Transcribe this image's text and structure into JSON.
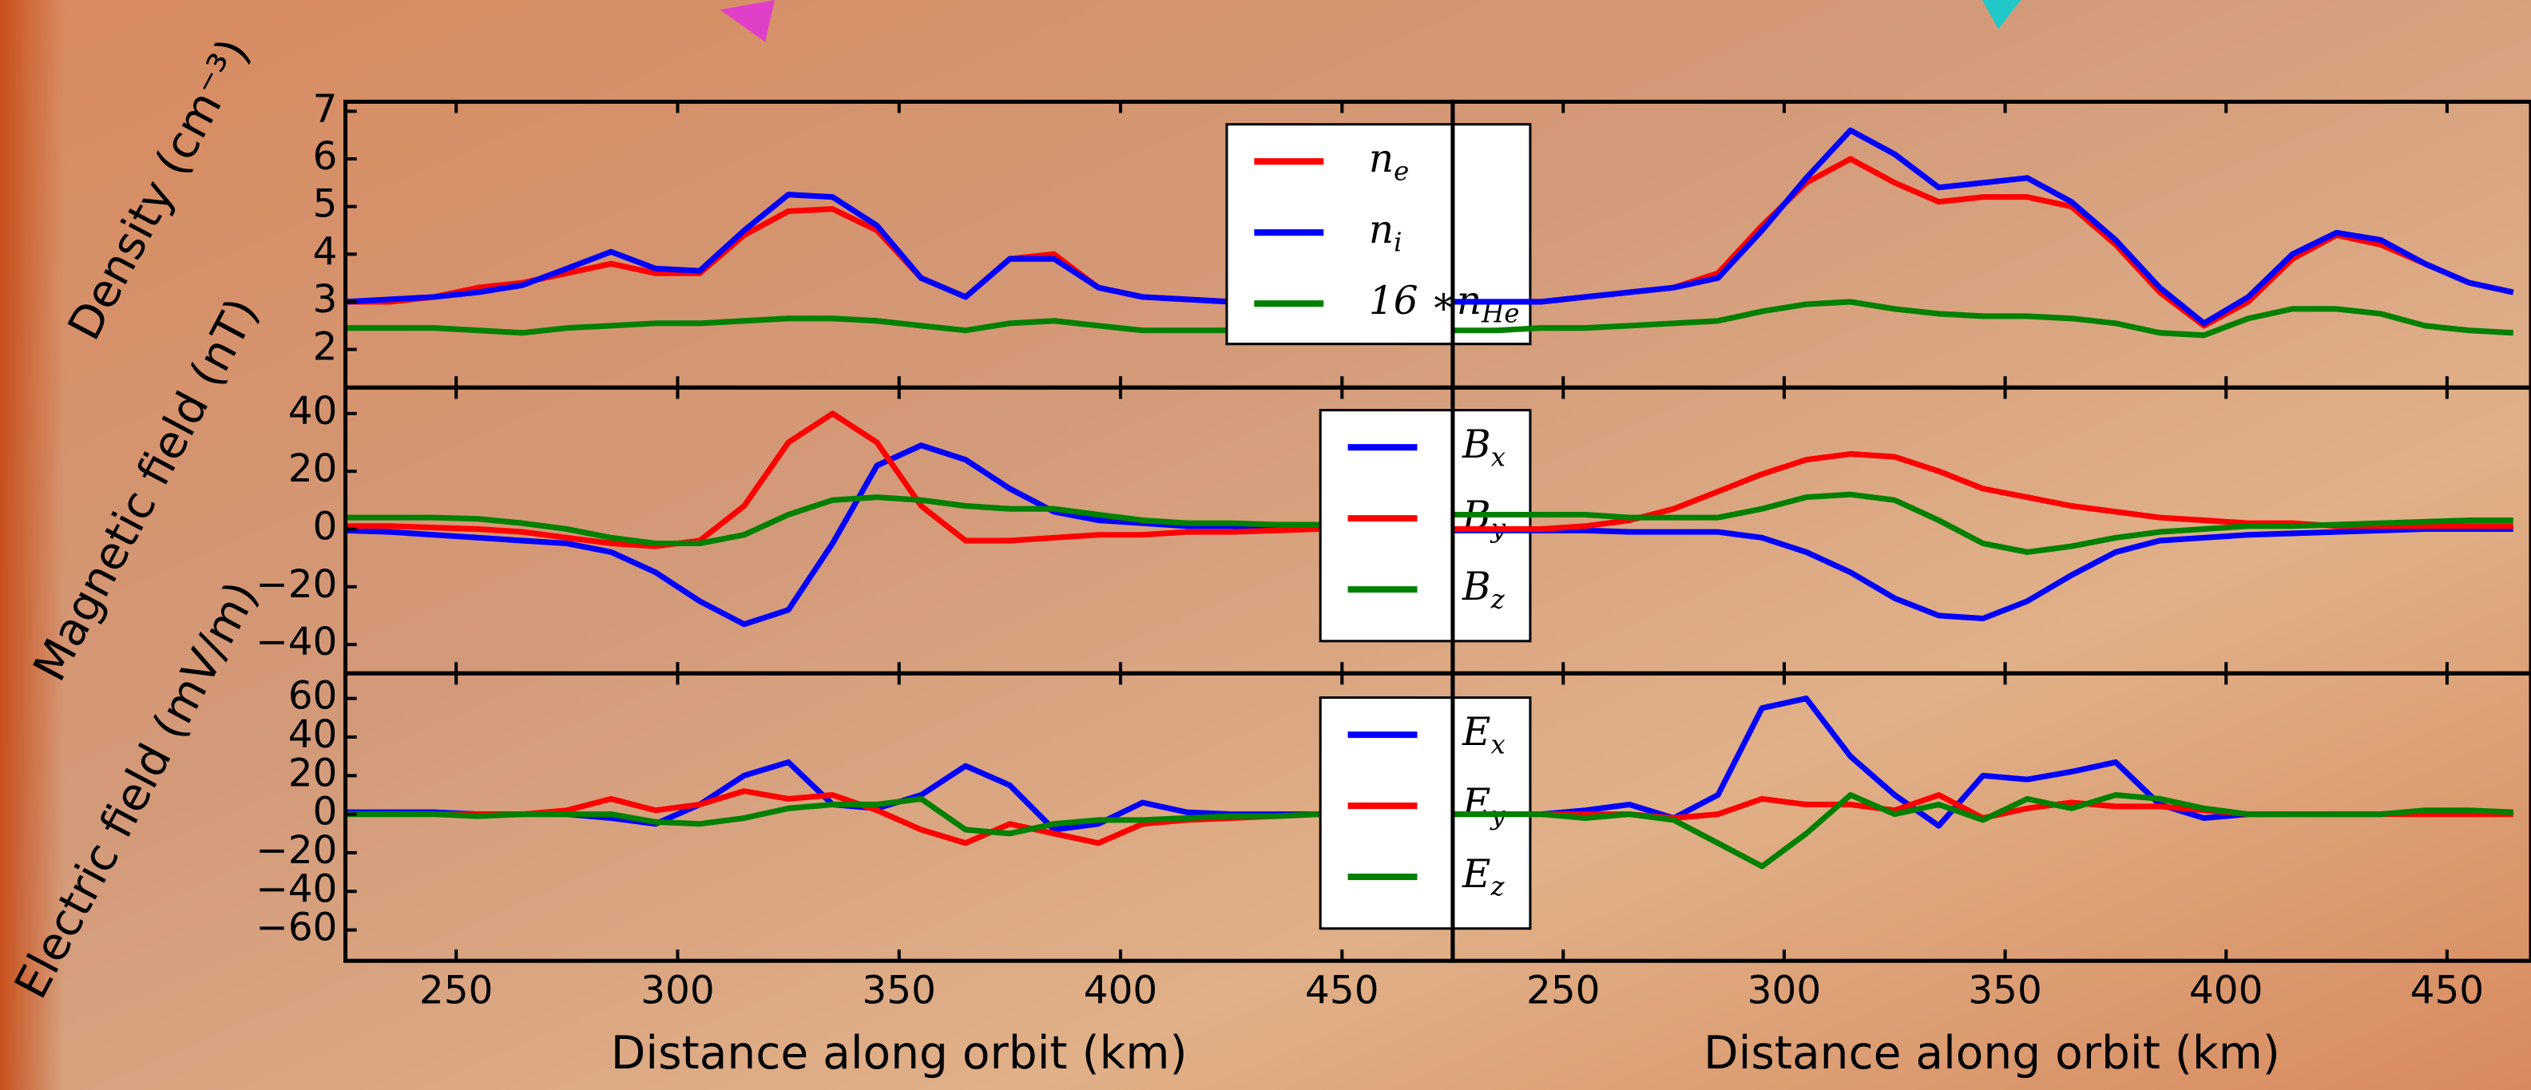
{
  "chart_data": [
    {
      "type": "line",
      "ylabel": "Density (cm⁻³)",
      "xlim": [
        225,
        475
      ],
      "ylim": [
        1.2,
        7.2
      ],
      "xticks": [
        250,
        300,
        350,
        400,
        450
      ],
      "yticks": [
        2,
        3,
        4,
        5,
        6,
        7
      ],
      "legend": true,
      "x": [
        225,
        235,
        245,
        255,
        265,
        275,
        285,
        295,
        305,
        315,
        325,
        335,
        345,
        355,
        365,
        375,
        385,
        395,
        405,
        415,
        425,
        435,
        445,
        455,
        465,
        475
      ],
      "series": [
        {
          "name": "n_e",
          "color": "#ff0000",
          "values": [
            3.0,
            3.0,
            3.1,
            3.3,
            3.4,
            3.6,
            3.8,
            3.6,
            3.6,
            4.4,
            4.9,
            4.95,
            4.5,
            3.5,
            3.1,
            3.9,
            4.0,
            3.3,
            3.1,
            3.05,
            3.0,
            3.0,
            3.0,
            3.0,
            3.0,
            3.0
          ]
        },
        {
          "name": "n_i",
          "color": "#0000ff",
          "values": [
            3.0,
            3.05,
            3.1,
            3.2,
            3.35,
            3.7,
            4.05,
            3.7,
            3.65,
            4.5,
            5.25,
            5.2,
            4.6,
            3.5,
            3.1,
            3.9,
            3.9,
            3.3,
            3.1,
            3.05,
            3.0,
            3.0,
            3.0,
            3.0,
            3.0,
            3.0
          ]
        },
        {
          "name": "16*n_He",
          "color": "#008000",
          "values": [
            2.45,
            2.45,
            2.45,
            2.4,
            2.35,
            2.45,
            2.5,
            2.55,
            2.55,
            2.6,
            2.65,
            2.65,
            2.6,
            2.5,
            2.4,
            2.55,
            2.6,
            2.5,
            2.4,
            2.4,
            2.4,
            2.45,
            2.45,
            2.45,
            2.45,
            2.45
          ]
        }
      ]
    },
    {
      "type": "line",
      "ylabel": "Magnetic field (nT)",
      "xlim": [
        225,
        475
      ],
      "ylim": [
        -50,
        49
      ],
      "xticks": [
        250,
        300,
        350,
        400,
        450
      ],
      "yticks": [
        {
          "value": -40,
          "label": "−40"
        },
        {
          "value": -20,
          "label": "−20"
        },
        0,
        20,
        40
      ],
      "legend": true,
      "x": [
        225,
        235,
        245,
        255,
        265,
        275,
        285,
        295,
        305,
        315,
        325,
        335,
        345,
        355,
        365,
        375,
        385,
        395,
        405,
        415,
        425,
        435,
        445,
        455,
        465,
        475
      ],
      "series": [
        {
          "name": "B_x",
          "color": "#0000ff",
          "values": [
            -0.5,
            -1,
            -2,
            -3,
            -4,
            -5,
            -8,
            -15,
            -25,
            -33,
            -28,
            -5,
            22,
            29,
            24,
            14,
            6,
            3,
            2,
            1,
            1,
            0.5,
            0.5,
            0.5,
            0.5,
            0.5
          ]
        },
        {
          "name": "B_y",
          "color": "#ff0000",
          "values": [
            1,
            1,
            0.5,
            0,
            -1,
            -3,
            -5,
            -6,
            -4,
            8,
            30,
            40,
            30,
            8,
            -4,
            -4,
            -3,
            -2,
            -2,
            -1,
            -1,
            -0.5,
            0,
            0,
            0,
            0
          ]
        },
        {
          "name": "B_z",
          "color": "#008000",
          "values": [
            4,
            4,
            4,
            3.5,
            2,
            0,
            -3,
            -5,
            -5,
            -2,
            5,
            10,
            11,
            10,
            8,
            7,
            7,
            5,
            3,
            2,
            2,
            1.5,
            1.5,
            1.5,
            1.5,
            1.5
          ]
        }
      ]
    },
    {
      "type": "line",
      "ylabel": "Electric field (mV/m)",
      "xlabel": "Distance along orbit (km)",
      "xlim": [
        225,
        475
      ],
      "ylim": [
        -76,
        73
      ],
      "xticks": [
        250,
        300,
        350,
        400,
        450
      ],
      "yticks": [
        {
          "value": -60,
          "label": "−60"
        },
        {
          "value": -40,
          "label": "−40"
        },
        {
          "value": -20,
          "label": "−20"
        },
        0,
        20,
        40,
        60
      ],
      "legend": true,
      "x": [
        225,
        235,
        245,
        255,
        265,
        275,
        285,
        295,
        305,
        315,
        325,
        335,
        345,
        355,
        365,
        375,
        385,
        395,
        405,
        415,
        425,
        435,
        445,
        455,
        465,
        475
      ],
      "series": [
        {
          "name": "E_x",
          "color": "#0000ff",
          "values": [
            1,
            1,
            1,
            0,
            0,
            0,
            -2,
            -5,
            5,
            20,
            27,
            5,
            3,
            10,
            25,
            15,
            -8,
            -5,
            6,
            1,
            0,
            0,
            0,
            0,
            0,
            0
          ]
        },
        {
          "name": "E_y",
          "color": "#ff0000",
          "values": [
            0,
            0,
            0,
            0,
            0,
            2,
            8,
            2,
            5,
            12,
            8,
            10,
            2,
            -8,
            -15,
            -5,
            -10,
            -15,
            -5,
            -3,
            -2,
            -1,
            0,
            0,
            0,
            0
          ]
        },
        {
          "name": "E_z",
          "color": "#008000",
          "values": [
            0,
            0,
            0,
            -1,
            0,
            0,
            0,
            -4,
            -5,
            -2,
            3,
            5,
            5,
            8,
            -8,
            -10,
            -5,
            -3,
            -3,
            -2,
            -1,
            -1,
            0,
            0,
            0,
            0
          ]
        }
      ]
    },
    {
      "type": "line",
      "xlim": [
        225,
        469
      ],
      "ylim": [
        1.2,
        7.2
      ],
      "xticks": [
        250,
        300,
        350,
        400,
        450
      ],
      "x": [
        225,
        235,
        245,
        255,
        265,
        275,
        285,
        295,
        305,
        315,
        325,
        335,
        345,
        355,
        365,
        375,
        385,
        395,
        405,
        415,
        425,
        435,
        445,
        455,
        465
      ],
      "series": [
        {
          "color": "#ff0000",
          "values": [
            3.0,
            3.0,
            3.0,
            3.1,
            3.2,
            3.3,
            3.6,
            4.6,
            5.5,
            6.0,
            5.5,
            5.1,
            5.2,
            5.2,
            5.0,
            4.2,
            3.2,
            2.5,
            3.0,
            3.9,
            4.4,
            4.2,
            3.8,
            3.4,
            3.2
          ]
        },
        {
          "color": "#0000ff",
          "values": [
            3.0,
            3.0,
            3.0,
            3.1,
            3.2,
            3.3,
            3.5,
            4.5,
            5.6,
            6.6,
            6.1,
            5.4,
            5.5,
            5.6,
            5.1,
            4.3,
            3.3,
            2.55,
            3.1,
            4.0,
            4.45,
            4.3,
            3.8,
            3.4,
            3.2
          ]
        },
        {
          "color": "#008000",
          "values": [
            2.4,
            2.4,
            2.45,
            2.45,
            2.5,
            2.55,
            2.6,
            2.8,
            2.95,
            3.0,
            2.85,
            2.75,
            2.7,
            2.7,
            2.65,
            2.55,
            2.35,
            2.3,
            2.65,
            2.85,
            2.85,
            2.75,
            2.5,
            2.4,
            2.35
          ]
        }
      ]
    },
    {
      "type": "line",
      "xlim": [
        225,
        469
      ],
      "ylim": [
        -50,
        49
      ],
      "xticks": [
        250,
        300,
        350,
        400,
        450
      ],
      "x": [
        225,
        235,
        245,
        255,
        265,
        275,
        285,
        295,
        305,
        315,
        325,
        335,
        345,
        355,
        365,
        375,
        385,
        395,
        405,
        415,
        425,
        435,
        445,
        455,
        465
      ],
      "series": [
        {
          "color": "#0000ff",
          "values": [
            -0.5,
            -0.5,
            -0.5,
            -0.5,
            -1,
            -1,
            -1,
            -3,
            -8,
            -15,
            -24,
            -30,
            -31,
            -25,
            -16,
            -8,
            -4,
            -3,
            -2,
            -1.5,
            -1,
            -0.5,
            0,
            0,
            0
          ]
        },
        {
          "color": "#ff0000",
          "values": [
            0,
            0,
            0,
            1,
            3,
            7,
            13,
            19,
            24,
            26,
            25,
            20,
            14,
            11,
            8,
            6,
            4,
            3,
            2,
            2,
            1,
            1,
            1,
            1,
            1
          ]
        },
        {
          "color": "#008000",
          "values": [
            5,
            5,
            5,
            5,
            4,
            4,
            4,
            7,
            11,
            12,
            10,
            3,
            -5,
            -8,
            -6,
            -3,
            -1,
            0,
            1,
            1,
            1.5,
            2,
            2.5,
            3,
            3
          ]
        }
      ]
    },
    {
      "type": "line",
      "xlabel": "Distance along orbit (km)",
      "xlim": [
        225,
        469
      ],
      "ylim": [
        -76,
        73
      ],
      "xticks": [
        250,
        300,
        350,
        400,
        450
      ],
      "x": [
        225,
        235,
        245,
        255,
        265,
        275,
        285,
        295,
        305,
        315,
        325,
        335,
        345,
        355,
        365,
        375,
        385,
        395,
        405,
        415,
        425,
        435,
        445,
        455,
        465
      ],
      "series": [
        {
          "color": "#0000ff",
          "values": [
            0,
            0,
            0,
            2,
            5,
            -2,
            10,
            55,
            60,
            30,
            10,
            -6,
            20,
            18,
            22,
            27,
            5,
            -2,
            0,
            0,
            0,
            0,
            1,
            1,
            0
          ]
        },
        {
          "color": "#ff0000",
          "values": [
            0,
            0,
            0,
            0,
            0,
            -2,
            0,
            8,
            5,
            5,
            2,
            10,
            -2,
            3,
            6,
            4,
            4,
            2,
            0,
            0,
            0,
            0,
            0,
            0,
            0
          ]
        },
        {
          "color": "#008000",
          "values": [
            0,
            0,
            0,
            -2,
            0,
            -3,
            -15,
            -27,
            -10,
            10,
            0,
            5,
            -3,
            8,
            3,
            10,
            8,
            3,
            0,
            0,
            0,
            0,
            2,
            2,
            1
          ]
        }
      ]
    }
  ]
}
